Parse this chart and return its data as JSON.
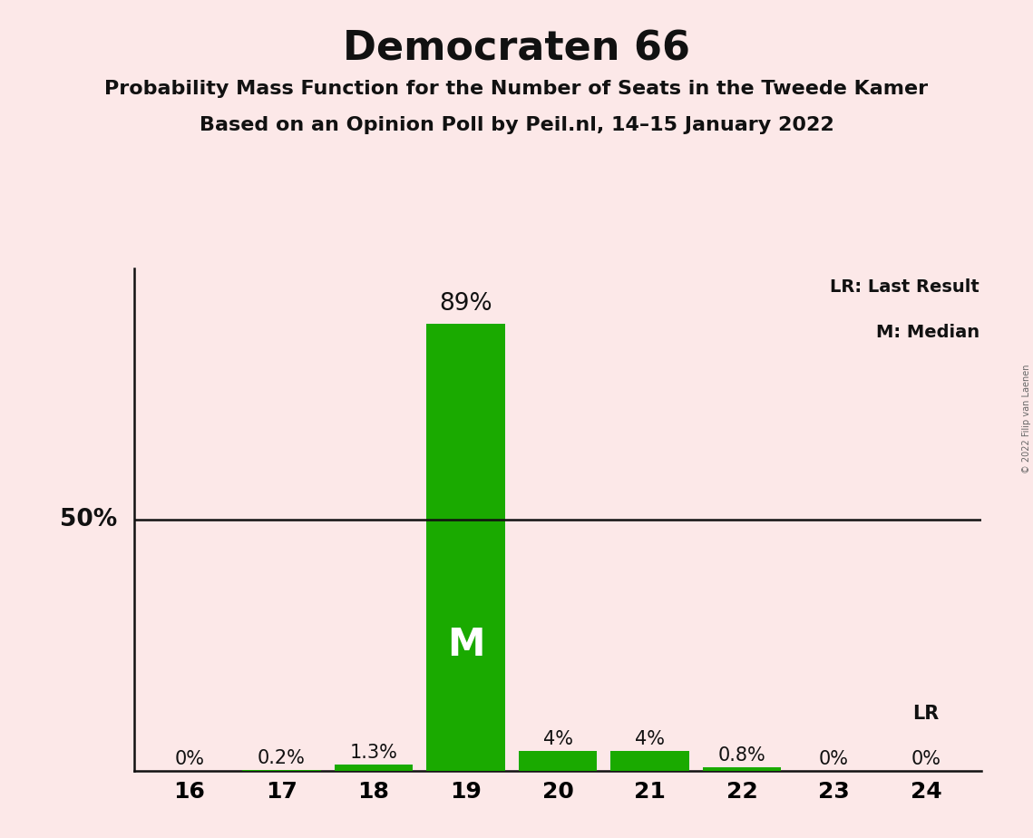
{
  "title": "Democraten 66",
  "subtitle1": "Probability Mass Function for the Number of Seats in the Tweede Kamer",
  "subtitle2": "Based on an Opinion Poll by Peil.nl, 14–15 January 2022",
  "copyright": "© 2022 Filip van Laenen",
  "seats": [
    16,
    17,
    18,
    19,
    20,
    21,
    22,
    23,
    24
  ],
  "values": [
    0.0,
    0.2,
    1.3,
    89.0,
    4.0,
    4.0,
    0.8,
    0.0,
    0.0
  ],
  "labels": [
    "0%",
    "0.2%",
    "1.3%",
    "89%",
    "4%",
    "4%",
    "0.8%",
    "0%",
    "0%"
  ],
  "bar_color": "#1aaa00",
  "median_seat": 19,
  "lr_seat": 24,
  "background_color": "#fce8e8",
  "fifty_pct_line_color": "#111111",
  "grid_color": "#888888",
  "ylim": [
    0,
    100
  ],
  "legend_lr": "LR: Last Result",
  "legend_m": "M: Median",
  "title_fontsize": 32,
  "subtitle_fontsize": 16,
  "label_fontsize": 15,
  "tick_fontsize": 18,
  "median_label_color": "#ffffff",
  "fifty_pct_label": "50%"
}
